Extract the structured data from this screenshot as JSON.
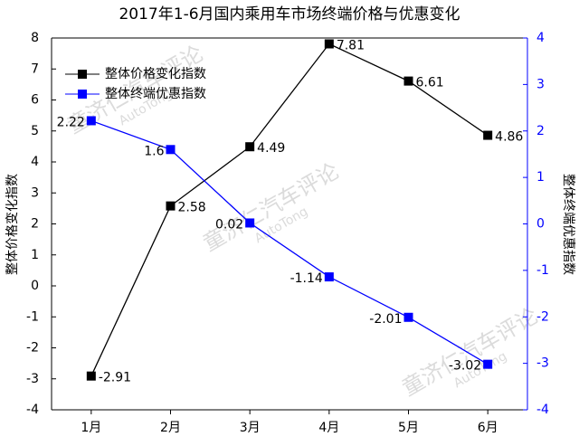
{
  "chart_data": {
    "type": "line",
    "title": "2017年1-6月国内乘用车市场终端价格与优惠变化",
    "categories": [
      "1月",
      "2月",
      "3月",
      "4月",
      "5月",
      "6月"
    ],
    "y_label": "整体价格变化指数",
    "y2_label": "整体终端优惠指数",
    "ylim": [
      -4,
      8
    ],
    "yticks": [
      -4,
      -3,
      -2,
      -1,
      0,
      1,
      2,
      3,
      4,
      5,
      6,
      7,
      8
    ],
    "y2lim": [
      -4,
      4
    ],
    "y2ticks": [
      -4,
      -3,
      -2,
      -1,
      0,
      1,
      2,
      3,
      4
    ],
    "legend": "upper left",
    "series": [
      {
        "name": "整体价格变化指数",
        "color": "#000000",
        "values": [
          -2.91,
          2.58,
          4.49,
          7.81,
          6.61,
          4.86
        ]
      },
      {
        "name": "整体终端优惠指数",
        "color": "#0000ff",
        "axis": "y2",
        "values": [
          2.22,
          1.6,
          0.02,
          -1.14,
          -2.01,
          -3.02
        ]
      }
    ],
    "watermark": [
      "童济仁汽车评论",
      "AutoTong"
    ]
  }
}
